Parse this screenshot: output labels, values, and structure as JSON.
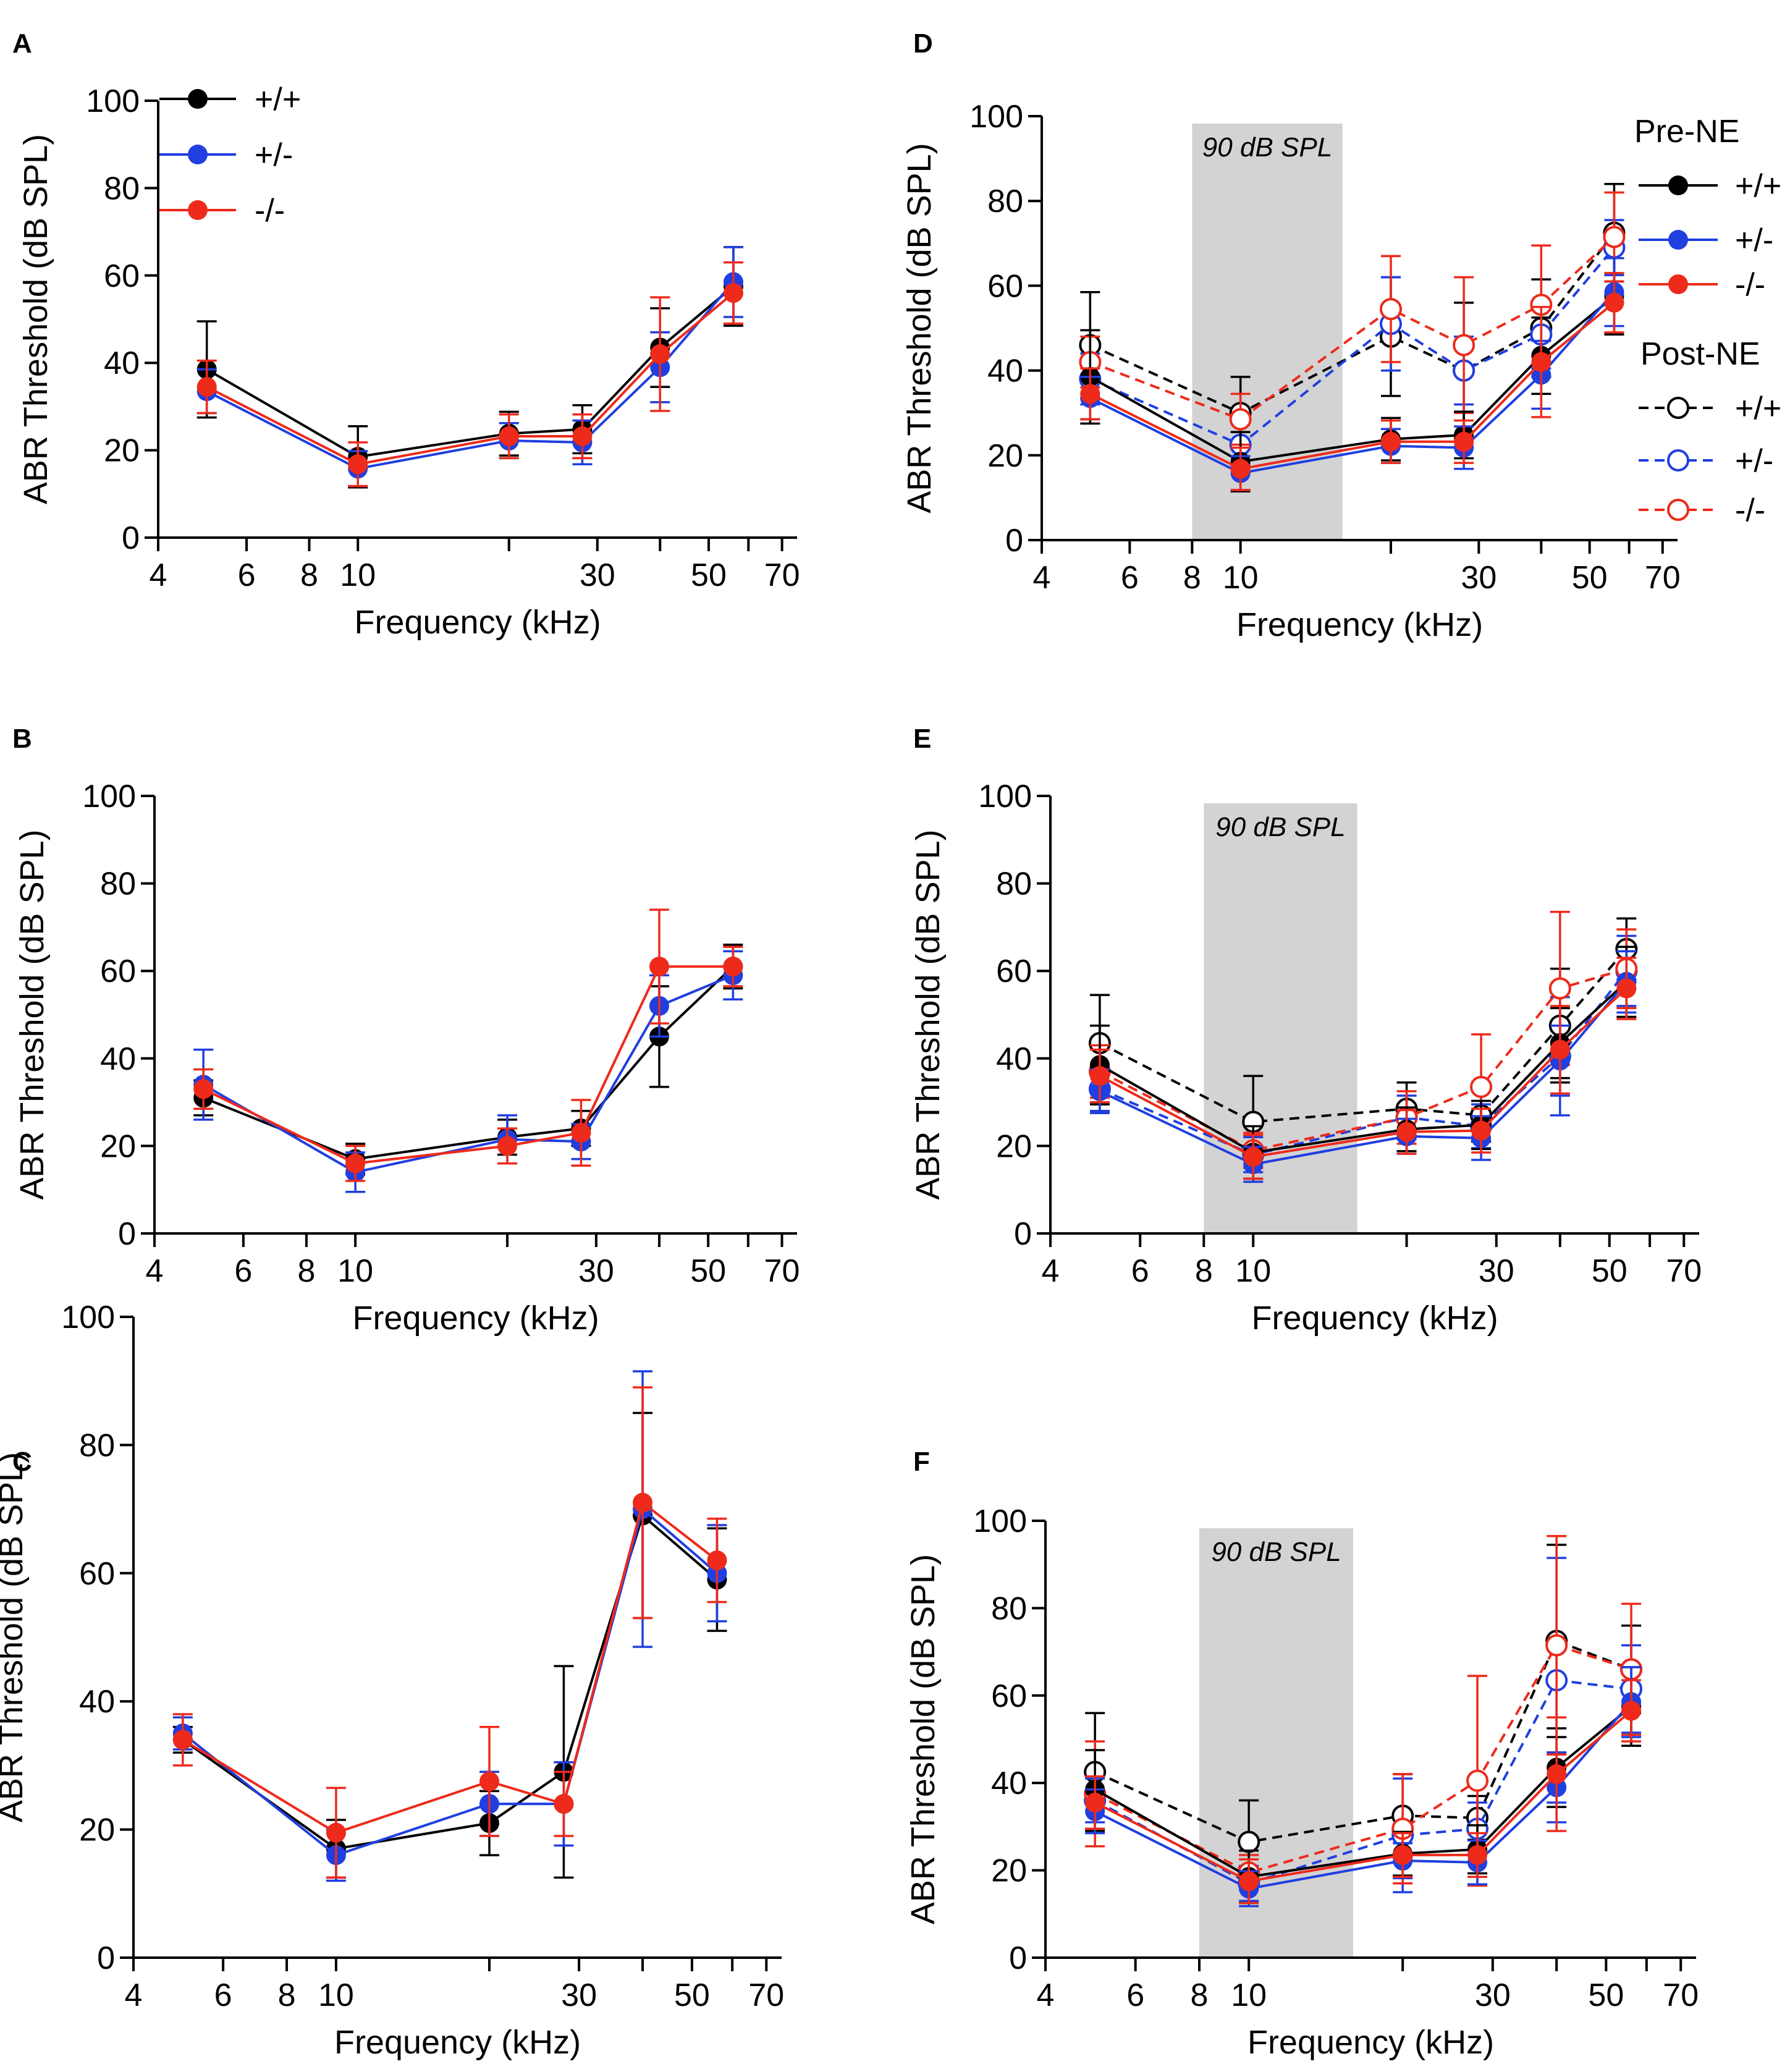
{
  "colors": {
    "wt": "#000000",
    "het": "#1f3fe0",
    "ko": "#ee2a1b",
    "band": "#d3d3d3"
  },
  "axes": {
    "xlabel": "Frequency (kHz)",
    "ylabel": "ABR Threshold (dB SPL)",
    "xticks": [
      "4",
      "6",
      "8",
      "10",
      "30",
      "50",
      "70"
    ],
    "yticks": [
      "0",
      "20",
      "40",
      "60",
      "80",
      "100"
    ]
  },
  "legend_a": {
    "items": [
      "+/+",
      "+/-",
      "-/-"
    ]
  },
  "legend_d": {
    "pre_title": "Pre-NE",
    "post_title": "Post-NE",
    "items": [
      "+/+",
      "+/-",
      "-/-"
    ]
  },
  "band_label": "90 dB SPL",
  "chart_data": [
    {
      "panel": "A",
      "type": "line",
      "xlabel": "Frequency (kHz)",
      "ylabel": "ABR Threshold (dB SPL)",
      "xscale": "log",
      "xlim": [
        4,
        75
      ],
      "ylim": [
        0,
        100
      ],
      "legend": "top-left",
      "x": [
        5,
        10,
        20,
        28,
        40,
        56
      ],
      "series": [
        {
          "name": "+/+",
          "phase": "pre",
          "values": [
            38.5,
            18.5,
            23.8,
            24.8,
            43.5,
            57.5
          ],
          "err": [
            11,
            7,
            5,
            5.5,
            9,
            9
          ]
        },
        {
          "name": "+/-",
          "phase": "pre",
          "values": [
            33.5,
            15.8,
            22.2,
            21.8,
            39.0,
            58.5
          ],
          "err": [
            5,
            4,
            4,
            5,
            8,
            8
          ]
        },
        {
          "name": "-/-",
          "phase": "pre",
          "values": [
            34.5,
            16.8,
            23.2,
            23.2,
            42.0,
            56.0
          ],
          "err": [
            6,
            5,
            5,
            5,
            13,
            7
          ]
        }
      ]
    },
    {
      "panel": "B",
      "type": "line",
      "xlabel": "Frequency (kHz)",
      "ylabel": "ABR Threshold (dB SPL)",
      "xscale": "log",
      "xlim": [
        4,
        75
      ],
      "ylim": [
        0,
        100
      ],
      "x": [
        5,
        10,
        20,
        28,
        40,
        56
      ],
      "series": [
        {
          "name": "+/+",
          "phase": "pre",
          "values": [
            31,
            17,
            22,
            24,
            45,
            61
          ],
          "err": [
            4,
            3.5,
            4,
            4,
            11.5,
            5
          ]
        },
        {
          "name": "+/-",
          "phase": "pre",
          "values": [
            34,
            14,
            21.5,
            21,
            52,
            59
          ],
          "err": [
            8,
            4.5,
            5.5,
            4,
            7,
            5.5
          ]
        },
        {
          "name": "-/-",
          "phase": "pre",
          "values": [
            33,
            16,
            20,
            23,
            61,
            61
          ],
          "err": [
            4.5,
            4,
            4,
            7.5,
            13,
            4.5
          ]
        }
      ]
    },
    {
      "panel": "C",
      "type": "line",
      "xlabel": "Frequency (kHz)",
      "ylabel": "ABR Threshold (dB SPL)",
      "xscale": "log",
      "xlim": [
        4,
        75
      ],
      "ylim": [
        0,
        100
      ],
      "x": [
        5,
        10,
        20,
        28,
        40,
        56
      ],
      "series": [
        {
          "name": "+/+",
          "phase": "pre",
          "values": [
            34,
            17,
            21,
            29,
            69,
            59
          ],
          "err": [
            2,
            4.5,
            5,
            16.5,
            16,
            8
          ]
        },
        {
          "name": "+/-",
          "phase": "pre",
          "values": [
            35,
            16,
            24,
            24,
            70,
            60
          ],
          "err": [
            2.5,
            4,
            5,
            6.5,
            21.5,
            7.5
          ]
        },
        {
          "name": "-/-",
          "phase": "pre",
          "values": [
            34,
            19.5,
            27.5,
            24,
            71,
            62
          ],
          "err": [
            4,
            7,
            8.5,
            5,
            18,
            6.5
          ]
        }
      ]
    },
    {
      "panel": "D",
      "type": "line",
      "xlabel": "Frequency (kHz)",
      "ylabel": "ABR Threshold (dB SPL)",
      "xscale": "log",
      "xlim": [
        4,
        75
      ],
      "ylim": [
        0,
        100
      ],
      "band_khz": [
        8,
        16
      ],
      "band_label": "90 dB SPL",
      "legend": "right",
      "x": [
        5,
        10,
        20,
        28,
        40,
        56
      ],
      "series": [
        {
          "name": "+/+",
          "phase": "pre",
          "values": [
            38.5,
            18.5,
            23.8,
            24.8,
            43.5,
            57.5
          ],
          "err": [
            11,
            7,
            5,
            5.5,
            9,
            9
          ]
        },
        {
          "name": "+/-",
          "phase": "pre",
          "values": [
            33.5,
            15.8,
            22.2,
            21.8,
            39.0,
            58.5
          ],
          "err": [
            5,
            4,
            4,
            5,
            8,
            8
          ]
        },
        {
          "name": "-/-",
          "phase": "pre",
          "values": [
            34.5,
            16.8,
            23.2,
            23.2,
            42.0,
            56.0
          ],
          "err": [
            6,
            5,
            5,
            5,
            13,
            7
          ]
        },
        {
          "name": "+/+",
          "phase": "post",
          "values": [
            46,
            30,
            48,
            40,
            50,
            72.5
          ],
          "err": [
            12.5,
            8.5,
            14,
            16,
            11.5,
            11.5
          ]
        },
        {
          "name": "+/-",
          "phase": "post",
          "values": [
            38,
            22.5,
            51,
            40,
            48.5,
            69
          ],
          "err": [
            6,
            5,
            11,
            8,
            8,
            6.5
          ]
        },
        {
          "name": "-/-",
          "phase": "post",
          "values": [
            42,
            28.5,
            54.5,
            46,
            55.5,
            71.5
          ],
          "err": [
            6,
            6,
            12.5,
            16,
            14,
            10.5
          ]
        }
      ]
    },
    {
      "panel": "E",
      "type": "line",
      "xlabel": "Frequency (kHz)",
      "ylabel": "ABR Threshold (dB SPL)",
      "xscale": "log",
      "xlim": [
        4,
        75
      ],
      "ylim": [
        0,
        100
      ],
      "band_khz": [
        8,
        16
      ],
      "band_label": "90 dB SPL",
      "x": [
        5,
        10,
        20,
        28,
        40,
        54
      ],
      "series": [
        {
          "name": "+/+",
          "phase": "pre",
          "values": [
            38.5,
            18.5,
            23.8,
            24.8,
            43.5,
            57.5
          ],
          "err": [
            9,
            6,
            5,
            5.5,
            8,
            8
          ]
        },
        {
          "name": "+/-",
          "phase": "pre",
          "values": [
            32.5,
            15.8,
            22.2,
            21.8,
            39.5,
            57.5
          ],
          "err": [
            5,
            4,
            4,
            5,
            8,
            7
          ]
        },
        {
          "name": "-/-",
          "phase": "pre",
          "values": [
            36,
            17.5,
            23.2,
            23.5,
            42,
            56
          ],
          "err": [
            6,
            5,
            5,
            5,
            10,
            7
          ]
        },
        {
          "name": "+/+",
          "phase": "post",
          "values": [
            43.5,
            25.5,
            28.5,
            27,
            47.5,
            65
          ],
          "err": [
            11,
            10.5,
            6,
            6,
            13,
            7
          ]
        },
        {
          "name": "+/-",
          "phase": "post",
          "values": [
            33,
            18,
            26.5,
            24.5,
            40.5,
            60
          ],
          "err": [
            5,
            4,
            5,
            5,
            13.5,
            8
          ]
        },
        {
          "name": "-/-",
          "phase": "post",
          "values": [
            37,
            19,
            26.5,
            33.5,
            56,
            60.5
          ],
          "err": [
            6,
            4,
            6,
            12,
            17.5,
            9
          ]
        }
      ]
    },
    {
      "panel": "F",
      "type": "line",
      "xlabel": "Frequency (kHz)",
      "ylabel": "ABR Threshold (dB SPL)",
      "xscale": "log",
      "xlim": [
        4,
        75
      ],
      "ylim": [
        0,
        100
      ],
      "band_khz": [
        8,
        16
      ],
      "band_label": "90 dB SPL",
      "x": [
        5,
        10,
        20,
        28,
        40,
        56
      ],
      "series": [
        {
          "name": "+/+",
          "phase": "pre",
          "values": [
            38.5,
            18.5,
            23.8,
            24.8,
            43.5,
            57.5
          ],
          "err": [
            9,
            6,
            5,
            5.5,
            9,
            9
          ]
        },
        {
          "name": "+/-",
          "phase": "pre",
          "values": [
            33.5,
            15.8,
            22.2,
            21.8,
            39.0,
            58.5
          ],
          "err": [
            5,
            4,
            4,
            5,
            8,
            8
          ]
        },
        {
          "name": "-/-",
          "phase": "pre",
          "values": [
            35.5,
            17.5,
            23.5,
            23.5,
            42,
            56.5
          ],
          "err": [
            6,
            5,
            5,
            5,
            13,
            7
          ]
        },
        {
          "name": "+/+",
          "phase": "post",
          "values": [
            42.5,
            26.5,
            32.5,
            32,
            72.5,
            66
          ],
          "err": [
            13.5,
            9.5,
            9.5,
            5,
            22,
            10
          ]
        },
        {
          "name": "+/-",
          "phase": "post",
          "values": [
            36,
            17,
            28,
            29.5,
            63.5,
            61.5
          ],
          "err": [
            5,
            4,
            13,
            6,
            28,
            10
          ]
        },
        {
          "name": "-/-",
          "phase": "post",
          "values": [
            37.5,
            19.5,
            29.5,
            40.5,
            71.5,
            66
          ],
          "err": [
            12,
            4,
            12.5,
            24,
            25,
            15
          ]
        }
      ]
    }
  ]
}
